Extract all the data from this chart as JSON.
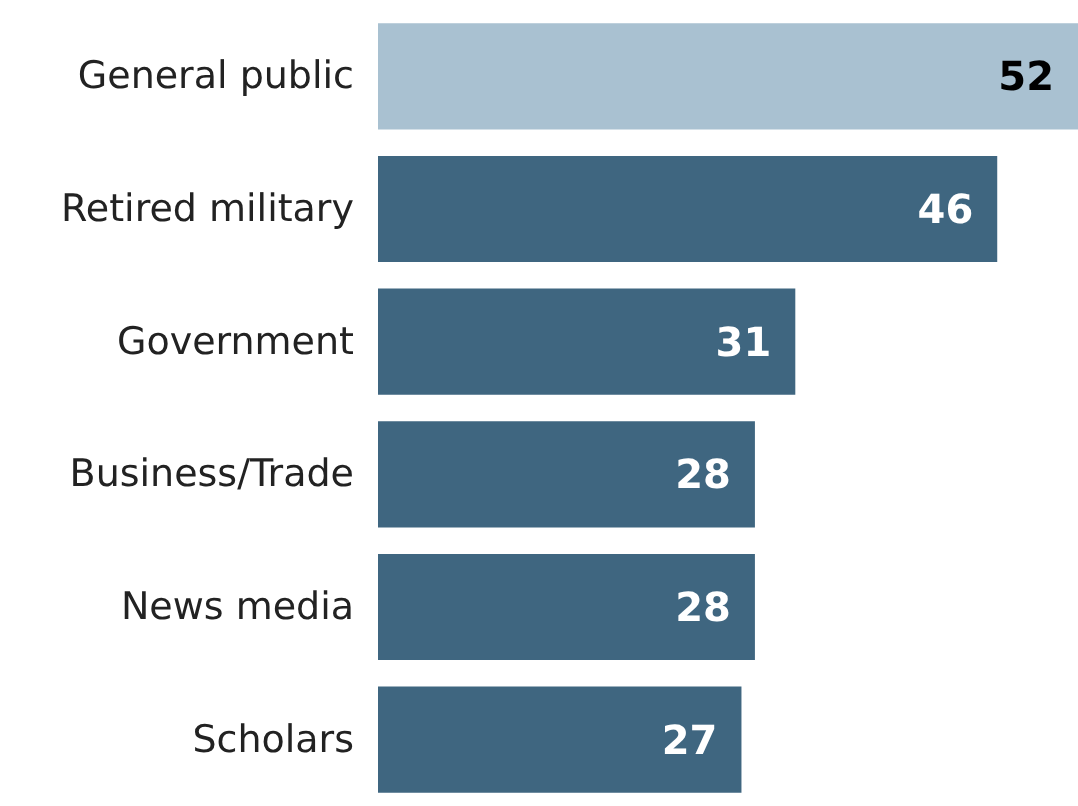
{
  "chart_data": {
    "type": "bar",
    "orientation": "horizontal",
    "categories": [
      "General public",
      "Retired military",
      "Government",
      "Business/Trade",
      "News media",
      "Scholars"
    ],
    "values": [
      52,
      46,
      31,
      28,
      28,
      27
    ],
    "colors": [
      "#a9c1d1",
      "#3f6680",
      "#3f6680",
      "#3f6680",
      "#3f6680",
      "#3f6680"
    ],
    "data_labels": true
  }
}
